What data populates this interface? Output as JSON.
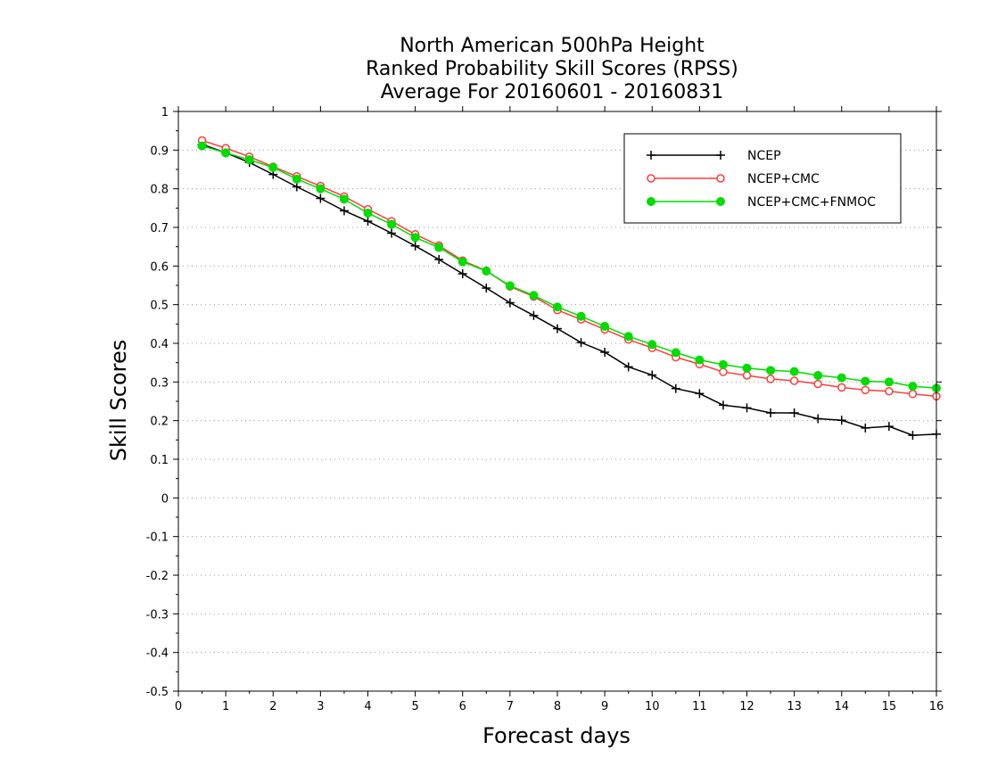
{
  "chart_data": {
    "type": "line",
    "title": [
      "North American 500hPa Height",
      "Ranked Probability Skill Scores (RPSS)",
      "Average For 20160601 - 20160831"
    ],
    "xlabel": "Forecast days",
    "ylabel": "Skill Scores",
    "xlim": [
      0,
      16
    ],
    "ylim": [
      -0.5,
      1
    ],
    "xticks": [
      0,
      1,
      2,
      3,
      4,
      5,
      6,
      7,
      8,
      9,
      10,
      11,
      12,
      13,
      14,
      15,
      16
    ],
    "xtick_labels": [
      "0",
      "1",
      "2",
      "3",
      "4",
      "5",
      "6",
      "7",
      "8",
      "9",
      "10",
      "11",
      "12",
      "13",
      "14",
      "15",
      "16"
    ],
    "yticks": [
      -0.5,
      -0.4,
      -0.3,
      -0.2,
      -0.1,
      0,
      0.1,
      0.2,
      0.3,
      0.4,
      0.5,
      0.6,
      0.7,
      0.8,
      0.9,
      1
    ],
    "ytick_labels": [
      "-0.5",
      "-0.4",
      "-0.3",
      "-0.2",
      "-0.1",
      "0",
      "0.1",
      "0.2",
      "0.3",
      "0.4",
      "0.5",
      "0.6",
      "0.7",
      "0.8",
      "0.9",
      "1"
    ],
    "grid": "horizontal-dotted",
    "legend_position": "top-right",
    "x": [
      0.5,
      1,
      1.5,
      2,
      2.5,
      3,
      3.5,
      4,
      4.5,
      5,
      5.5,
      6,
      6.5,
      7,
      7.5,
      8,
      8.5,
      9,
      9.5,
      10,
      10.5,
      11,
      11.5,
      12,
      12.5,
      13,
      13.5,
      14,
      14.5,
      15,
      15.5,
      16
    ],
    "series": [
      {
        "name": "NCEP",
        "color": "#000000",
        "marker": "plus",
        "values": [
          0.915,
          0.893,
          0.868,
          0.837,
          0.805,
          0.775,
          0.743,
          0.716,
          0.685,
          0.652,
          0.617,
          0.58,
          0.543,
          0.505,
          0.472,
          0.438,
          0.402,
          0.377,
          0.339,
          0.318,
          0.283,
          0.27,
          0.24,
          0.233,
          0.22,
          0.22,
          0.205,
          0.201,
          0.181,
          0.185,
          0.162,
          0.165
        ]
      },
      {
        "name": "NCEP+CMC",
        "color": "#ff3b3b",
        "marker": "open-circle",
        "values": [
          0.925,
          0.905,
          0.883,
          0.857,
          0.832,
          0.807,
          0.78,
          0.747,
          0.716,
          0.682,
          0.653,
          0.614,
          0.588,
          0.547,
          0.521,
          0.486,
          0.462,
          0.436,
          0.41,
          0.388,
          0.364,
          0.346,
          0.326,
          0.317,
          0.308,
          0.303,
          0.295,
          0.286,
          0.279,
          0.276,
          0.269,
          0.263
        ]
      },
      {
        "name": "NCEP+CMC+FNMOC",
        "color": "#00dd00",
        "marker": "filled-circle",
        "values": [
          0.911,
          0.893,
          0.875,
          0.855,
          0.825,
          0.8,
          0.773,
          0.737,
          0.708,
          0.674,
          0.648,
          0.611,
          0.587,
          0.549,
          0.524,
          0.494,
          0.47,
          0.444,
          0.418,
          0.397,
          0.376,
          0.357,
          0.345,
          0.336,
          0.33,
          0.327,
          0.317,
          0.311,
          0.302,
          0.3,
          0.289,
          0.284
        ]
      }
    ]
  }
}
